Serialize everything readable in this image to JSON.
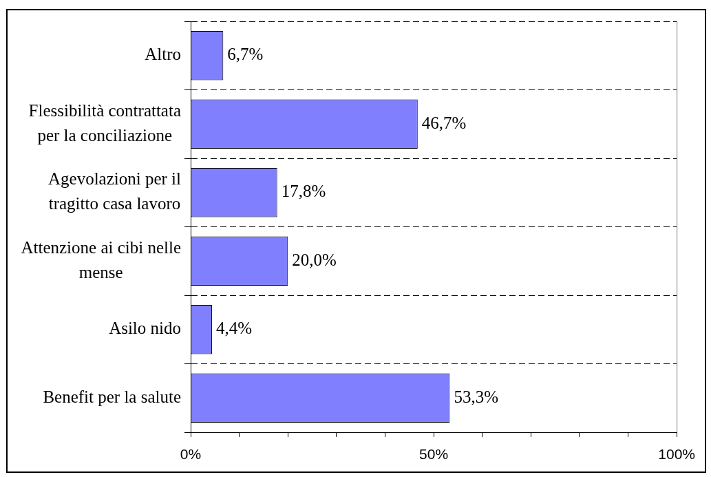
{
  "chart_data": {
    "type": "bar",
    "orientation": "horizontal",
    "categories": [
      "Altro",
      "Flessibilità contrattata per la conciliazione",
      "Agevolazioni per il tragitto casa lavoro",
      "Attenzione ai cibi nelle mense",
      "Asilo nido",
      "Benefit per la salute"
    ],
    "values": [
      6.7,
      46.7,
      17.8,
      20.0,
      4.4,
      53.3
    ],
    "value_labels": [
      "6,7%",
      "46,7%",
      "17,8%",
      "20,0%",
      "4,4%",
      "53,3%"
    ],
    "color": "#8080ff",
    "xlim": [
      0,
      100
    ],
    "xticks": [
      {
        "value": 0,
        "label": "0%"
      },
      {
        "value": 10,
        "label": null
      },
      {
        "value": 20,
        "label": null
      },
      {
        "value": 30,
        "label": null
      },
      {
        "value": 40,
        "label": null
      },
      {
        "value": 50,
        "label": "50%"
      },
      {
        "value": 60,
        "label": null
      },
      {
        "value": 70,
        "label": null
      },
      {
        "value": 80,
        "label": null
      },
      {
        "value": 90,
        "label": null
      },
      {
        "value": 100,
        "label": "100%"
      }
    ],
    "grid": "y"
  }
}
